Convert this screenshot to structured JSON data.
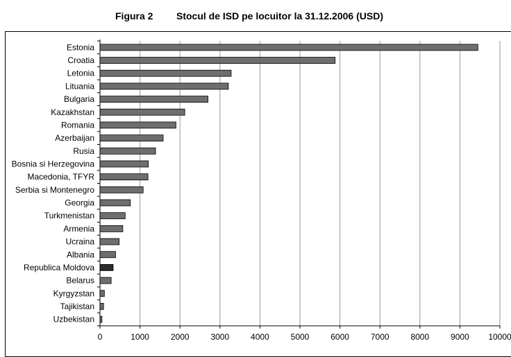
{
  "figure": {
    "label": "Figura 2",
    "title": "Stocul de ISD pe locuitor la 31.12.2006 (USD)"
  },
  "colors": {
    "bar": "#6e6e6e",
    "bar_highlight": "#2b2b2b",
    "grid": "#9a9a9a",
    "axis": "#000000"
  },
  "chart_data": {
    "type": "bar",
    "orientation": "horizontal",
    "title": "Stocul de ISD pe locuitor la 31.12.2006 (USD)",
    "xlabel": "",
    "ylabel": "",
    "xlim": [
      0,
      10000
    ],
    "xticks": [
      0,
      1000,
      2000,
      3000,
      4000,
      5000,
      6000,
      7000,
      8000,
      9000,
      10000
    ],
    "grid": true,
    "legend": "none",
    "highlight": "Republica Moldova",
    "categories": [
      "Estonia",
      "Croatia",
      "Letonia",
      "Lituania",
      "Bulgaria",
      "Kazakhstan",
      "Romania",
      "Azerbaijan",
      "Rusia",
      "Bosnia si Herzegovina",
      "Macedonia, TFYR",
      "Serbia si Montenegro",
      "Georgia",
      "Turkmenistan",
      "Armenia",
      "Ucraina",
      "Albania",
      "Republica Moldova",
      "Belarus",
      "Kyrgyzstan",
      "Tajikistan",
      "Uzbekistan"
    ],
    "values": [
      9450,
      5880,
      3280,
      3210,
      2700,
      2120,
      1900,
      1580,
      1390,
      1210,
      1200,
      1080,
      760,
      630,
      570,
      480,
      390,
      330,
      280,
      110,
      90,
      50
    ]
  }
}
